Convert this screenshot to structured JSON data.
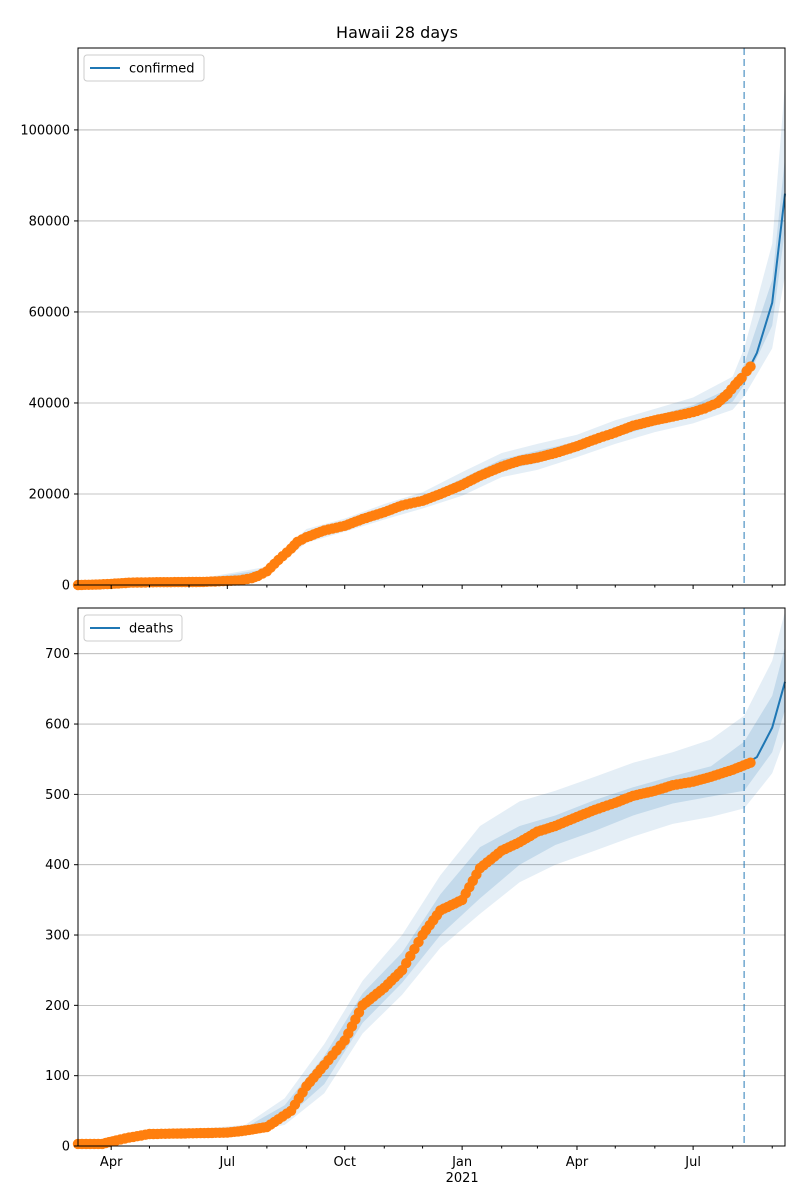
{
  "title": "Hawaii 28 days",
  "colors": {
    "line": "#1f77b4",
    "observed": "#ff7f0e",
    "band": "#1f77b4",
    "grid": "#b0b0b0",
    "forecast_marker": "#1f77b4"
  },
  "chart_data": [
    {
      "type": "line",
      "title": "Hawaii 28 days",
      "legend": "confirmed",
      "legend_position": "top-left",
      "grid": "horizontal",
      "ylim": [
        0,
        118000
      ],
      "yticks": [
        0,
        20000,
        40000,
        60000,
        80000,
        100000
      ],
      "ytick_labels": [
        "0",
        "20000",
        "40000",
        "60000",
        "80000",
        "100000"
      ],
      "forecast_start": "2021-08-10",
      "observed": {
        "x": [
          "2020-03-06",
          "2020-03-20",
          "2020-04-01",
          "2020-04-15",
          "2020-05-01",
          "2020-05-15",
          "2020-06-01",
          "2020-06-15",
          "2020-07-01",
          "2020-07-10",
          "2020-07-20",
          "2020-07-25",
          "2020-08-01",
          "2020-08-10",
          "2020-08-20",
          "2020-08-25",
          "2020-09-01",
          "2020-09-15",
          "2020-10-01",
          "2020-10-15",
          "2020-11-01",
          "2020-11-15",
          "2020-12-01",
          "2020-12-15",
          "2021-01-01",
          "2021-01-15",
          "2021-02-01",
          "2021-02-15",
          "2021-03-01",
          "2021-03-15",
          "2021-04-01",
          "2021-04-15",
          "2021-05-01",
          "2021-05-15",
          "2021-06-01",
          "2021-06-15",
          "2021-07-01",
          "2021-07-10",
          "2021-07-20",
          "2021-07-28",
          "2021-08-03",
          "2021-08-08",
          "2021-08-12",
          "2021-08-15"
        ],
        "y": [
          2,
          80,
          250,
          500,
          600,
          620,
          650,
          700,
          900,
          1000,
          1500,
          2000,
          3000,
          5500,
          8000,
          9500,
          10500,
          12000,
          13000,
          14500,
          16000,
          17500,
          18500,
          20000,
          22000,
          24000,
          26000,
          27300,
          28000,
          29000,
          30500,
          32000,
          33500,
          35000,
          36200,
          37000,
          38000,
          38800,
          40000,
          42000,
          44000,
          45500,
          47000,
          48000
        ]
      },
      "forecast": {
        "x": [
          "2021-08-10",
          "2021-08-20",
          "2021-09-01",
          "2021-09-11"
        ],
        "y": [
          45500,
          51000,
          62000,
          86000
        ]
      },
      "band_inner": {
        "x": [
          "2020-06-01",
          "2020-08-01",
          "2020-09-01",
          "2020-10-01",
          "2020-11-01",
          "2020-12-01",
          "2021-01-01",
          "2021-02-01",
          "2021-03-01",
          "2021-04-01",
          "2021-05-01",
          "2021-06-01",
          "2021-07-01",
          "2021-08-01",
          "2021-08-10",
          "2021-09-01",
          "2021-09-11"
        ],
        "lower": [
          700,
          2800,
          10000,
          12500,
          15300,
          17800,
          21000,
          25200,
          26800,
          29600,
          32500,
          35100,
          37000,
          40300,
          44000,
          57000,
          78000
        ],
        "upper": [
          900,
          3500,
          11200,
          13600,
          16700,
          19200,
          23400,
          27600,
          29500,
          31500,
          34700,
          37200,
          39500,
          43500,
          48500,
          67000,
          94000
        ]
      },
      "band_outer": {
        "x": [
          "2020-06-01",
          "2020-08-01",
          "2020-09-01",
          "2020-10-01",
          "2020-11-01",
          "2020-12-01",
          "2021-01-01",
          "2021-02-01",
          "2021-03-01",
          "2021-04-01",
          "2021-05-01",
          "2021-06-01",
          "2021-07-01",
          "2021-08-01",
          "2021-08-10",
          "2021-09-01",
          "2021-09-11"
        ],
        "lower": [
          600,
          2400,
          9300,
          11700,
          14400,
          16800,
          19600,
          23700,
          25300,
          28100,
          31000,
          33600,
          35500,
          38500,
          41500,
          52000,
          68000
        ],
        "upper": [
          1000,
          4000,
          12300,
          14600,
          17800,
          20400,
          24800,
          29000,
          31000,
          33000,
          36200,
          38700,
          41200,
          45800,
          52000,
          75000,
          110000
        ]
      }
    },
    {
      "type": "line",
      "legend": "deaths",
      "legend_position": "top-left",
      "grid": "horizontal",
      "ylim": [
        0,
        765
      ],
      "yticks": [
        0,
        100,
        200,
        300,
        400,
        500,
        600,
        700
      ],
      "ytick_labels": [
        "0",
        "100",
        "200",
        "300",
        "400",
        "500",
        "600",
        "700"
      ],
      "xtick_labels": [
        {
          "date": "2020-04-01",
          "label": "Apr",
          "sub": ""
        },
        {
          "date": "2020-07-01",
          "label": "Jul",
          "sub": ""
        },
        {
          "date": "2020-10-01",
          "label": "Oct",
          "sub": ""
        },
        {
          "date": "2021-01-01",
          "label": "Jan",
          "sub": "2021"
        },
        {
          "date": "2021-04-01",
          "label": "Apr",
          "sub": ""
        },
        {
          "date": "2021-07-01",
          "label": "Jul",
          "sub": ""
        }
      ],
      "forecast_start": "2021-08-10",
      "observed": {
        "x": [
          "2020-03-06",
          "2020-03-25",
          "2020-04-05",
          "2020-04-15",
          "2020-05-01",
          "2020-06-01",
          "2020-07-01",
          "2020-07-15",
          "2020-08-01",
          "2020-08-10",
          "2020-08-20",
          "2020-09-01",
          "2020-09-15",
          "2020-10-01",
          "2020-10-15",
          "2020-11-01",
          "2020-11-15",
          "2020-12-01",
          "2020-12-15",
          "2021-01-01",
          "2021-01-15",
          "2021-02-01",
          "2021-02-15",
          "2021-03-01",
          "2021-03-15",
          "2021-04-01",
          "2021-04-15",
          "2021-05-01",
          "2021-05-15",
          "2021-06-01",
          "2021-06-15",
          "2021-07-01",
          "2021-07-15",
          "2021-08-01",
          "2021-08-15"
        ],
        "y": [
          3,
          3,
          8,
          12,
          17,
          18,
          19,
          22,
          27,
          38,
          50,
          85,
          115,
          150,
          200,
          225,
          250,
          300,
          335,
          350,
          395,
          420,
          432,
          447,
          455,
          468,
          478,
          488,
          498,
          505,
          513,
          518,
          525,
          535,
          545
        ]
      },
      "forecast": {
        "x": [
          "2021-08-10",
          "2021-08-20",
          "2021-09-01",
          "2021-09-11"
        ],
        "y": [
          542,
          553,
          595,
          660
        ]
      },
      "band_inner": {
        "x": [
          "2020-06-01",
          "2020-07-15",
          "2020-08-15",
          "2020-09-15",
          "2020-10-15",
          "2020-11-15",
          "2020-12-15",
          "2021-01-15",
          "2021-02-15",
          "2021-03-15",
          "2021-04-15",
          "2021-05-15",
          "2021-06-15",
          "2021-07-15",
          "2021-08-10",
          "2021-09-01",
          "2021-09-11"
        ],
        "lower": [
          17,
          21,
          38,
          88,
          175,
          232,
          300,
          352,
          400,
          428,
          448,
          470,
          487,
          497,
          505,
          560,
          620
        ],
        "upper": [
          20,
          26,
          58,
          128,
          217,
          275,
          358,
          425,
          455,
          470,
          492,
          510,
          526,
          540,
          575,
          640,
          710
        ]
      },
      "band_outer": {
        "x": [
          "2020-06-01",
          "2020-07-15",
          "2020-08-15",
          "2020-09-15",
          "2020-10-15",
          "2020-11-15",
          "2020-12-15",
          "2021-01-15",
          "2021-02-15",
          "2021-03-15",
          "2021-04-15",
          "2021-05-15",
          "2021-06-15",
          "2021-07-15",
          "2021-08-10",
          "2021-09-01",
          "2021-09-11"
        ],
        "lower": [
          15,
          19,
          30,
          75,
          160,
          215,
          282,
          330,
          375,
          400,
          420,
          440,
          458,
          468,
          480,
          530,
          580
        ],
        "upper": [
          23,
          30,
          68,
          145,
          235,
          300,
          385,
          455,
          490,
          505,
          525,
          545,
          560,
          578,
          612,
          690,
          760
        ]
      }
    }
  ]
}
